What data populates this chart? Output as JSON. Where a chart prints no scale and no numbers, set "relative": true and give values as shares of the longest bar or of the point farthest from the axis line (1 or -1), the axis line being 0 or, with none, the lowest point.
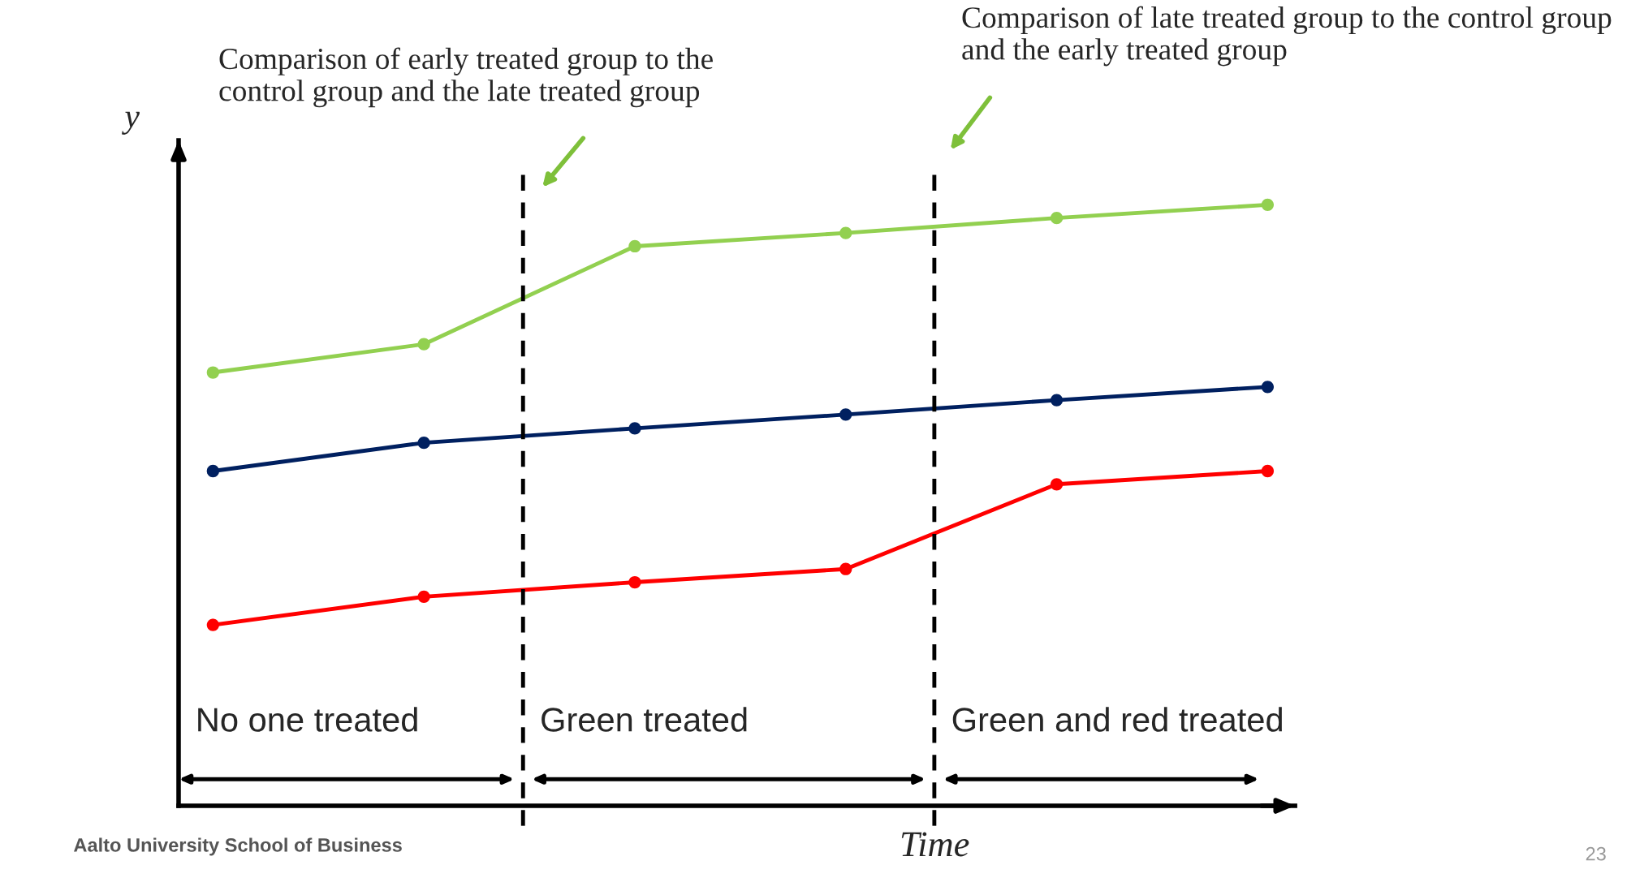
{
  "chart_data": {
    "type": "line",
    "relative": true,
    "xlabel": "Time",
    "ylabel": "y",
    "categories": [
      null,
      null,
      null,
      null,
      null,
      null
    ],
    "series": [
      {
        "color": "#92d050",
        "values": [
          0.721,
          0.768,
          0.931,
          0.953,
          0.978,
          1.0
        ]
      },
      {
        "color": "#002060",
        "values": [
          0.557,
          0.604,
          0.628,
          0.651,
          0.675,
          0.697
        ]
      },
      {
        "color": "#ff0000",
        "values": [
          0.301,
          0.348,
          0.372,
          0.394,
          0.535,
          0.557
        ]
      }
    ],
    "marker": "circle",
    "line_style": "solid",
    "annotations": [
      "Comparison of early treated group to the control group and the late treated group",
      "Comparison of late treated group to the control group and the early treated group",
      "No one treated",
      "Green treated",
      "Green and red treated",
      "Aalto University School of Business",
      "23"
    ]
  }
}
